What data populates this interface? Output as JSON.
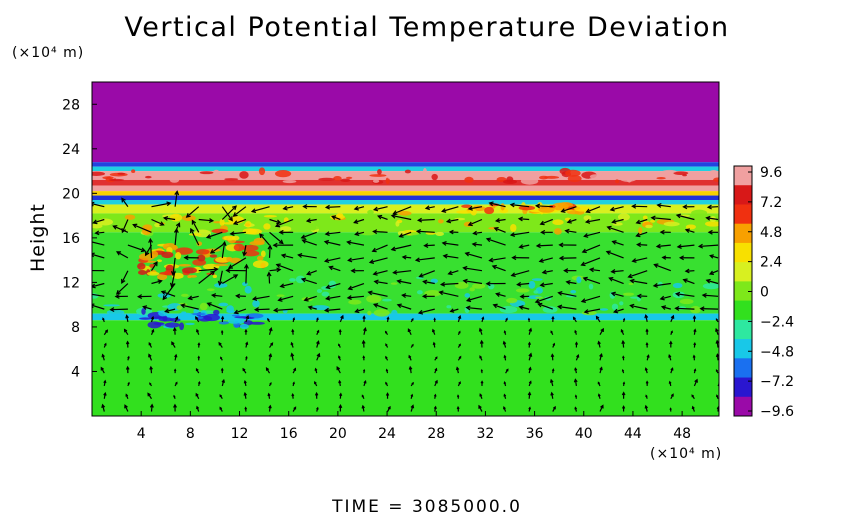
{
  "chart_data": {
    "type": "heatmap",
    "title": "Vertical Potential Temperature Deviation",
    "ylabel": "Height",
    "x_unit": "(×10⁴ m)",
    "y_unit": "(×10⁴ m)",
    "footer": "TIME = 3085000.0",
    "x_ticks": [
      "4",
      "8",
      "12",
      "16",
      "20",
      "24",
      "28",
      "32",
      "36",
      "40",
      "44",
      "48"
    ],
    "y_ticks": [
      "4",
      "8",
      "12",
      "16",
      "20",
      "24",
      "28"
    ],
    "xlim": [
      0,
      51
    ],
    "ylim": [
      0,
      30
    ],
    "colorbar": {
      "labels": [
        "9.6",
        "7.2",
        "4.8",
        "2.4",
        "0",
        "−2.4",
        "−4.8",
        "−7.2",
        "−9.6"
      ],
      "min": -9.6,
      "max": 9.6,
      "colors": [
        "#9a0aa8",
        "#2a16d0",
        "#1a70f0",
        "#18c8e8",
        "#2ee8a0",
        "#32e01e",
        "#7ee81a",
        "#d8f020",
        "#f8e000",
        "#f8a000",
        "#f03010",
        "#d81818",
        "#f0a0a0"
      ]
    },
    "layers": [
      {
        "y": [
          22.8,
          30
        ],
        "value": 12,
        "color": "#9a0aa8"
      },
      {
        "y": [
          22.4,
          22.8
        ],
        "value": -6,
        "color": "#2244e0"
      },
      {
        "y": [
          22.0,
          22.4
        ],
        "value": -2,
        "color": "#20d0e0"
      },
      {
        "y": [
          21.2,
          22.0
        ],
        "value": 10,
        "color": "#f0a0a0"
      },
      {
        "y": [
          20.7,
          21.2
        ],
        "value": 8,
        "color": "#e03030"
      },
      {
        "y": [
          20.2,
          20.7
        ],
        "value": 10,
        "color": "#f0a0a0"
      },
      {
        "y": [
          19.8,
          20.2
        ],
        "value": 5,
        "color": "#f8d000"
      },
      {
        "y": [
          19.4,
          19.8
        ],
        "value": -6,
        "color": "#2030d8"
      },
      {
        "y": [
          19.0,
          19.4
        ],
        "value": -2,
        "color": "#20d0e0"
      },
      {
        "y": [
          18.2,
          19.0
        ],
        "value": 4,
        "color": "#d8f020"
      },
      {
        "y": [
          16.5,
          18.2
        ],
        "value": 2,
        "color": "#7ee81a"
      },
      {
        "y": [
          9.2,
          16.5
        ],
        "value": 0,
        "color": "#38e030"
      },
      {
        "y": [
          8.6,
          9.2
        ],
        "value": -2.4,
        "color": "#18c8e8"
      },
      {
        "y": [
          0,
          8.6
        ],
        "value": 0,
        "color": "#32e01e"
      }
    ]
  }
}
